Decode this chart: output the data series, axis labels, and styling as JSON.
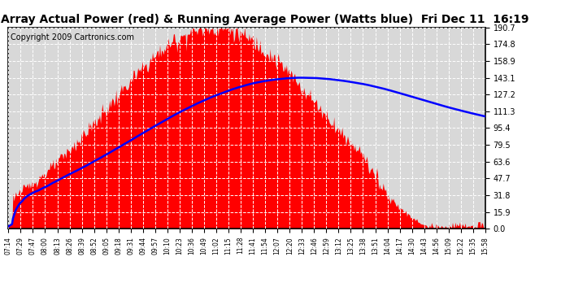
{
  "title": "West Array Actual Power (red) & Running Average Power (Watts blue)  Fri Dec 11  16:19",
  "copyright": "Copyright 2009 Cartronics.com",
  "yticks": [
    0.0,
    15.9,
    31.8,
    47.7,
    63.6,
    79.5,
    95.4,
    111.3,
    127.2,
    143.1,
    158.9,
    174.8,
    190.7
  ],
  "ymax": 190.7,
  "ymin": 0.0,
  "xtick_labels": [
    "07:14",
    "07:29",
    "07:47",
    "08:00",
    "08:13",
    "08:26",
    "08:39",
    "08:52",
    "09:05",
    "09:18",
    "09:31",
    "09:44",
    "09:57",
    "10:10",
    "10:23",
    "10:36",
    "10:49",
    "11:02",
    "11:15",
    "11:28",
    "11:41",
    "11:54",
    "12:07",
    "12:20",
    "12:33",
    "12:46",
    "12:59",
    "13:12",
    "13:25",
    "13:38",
    "13:51",
    "14:04",
    "14:17",
    "14:30",
    "14:43",
    "14:56",
    "15:09",
    "15:22",
    "15:35",
    "15:58"
  ],
  "bg_color": "#ffffff",
  "plot_bg_color": "#d8d8d8",
  "grid_color": "#ffffff",
  "bar_color": "#ff0000",
  "line_color": "#0000ff",
  "title_color": "#000000",
  "title_fontsize": 10,
  "copyright_fontsize": 7,
  "peak_val": 190.7,
  "avg_peak_val": 143.1,
  "n_points": 524
}
